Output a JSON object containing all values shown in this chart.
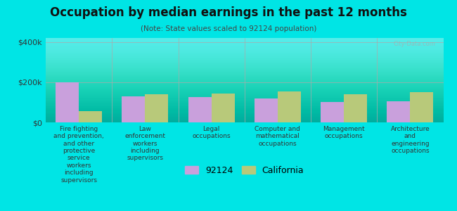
{
  "title": "Occupation by median earnings in the past 12 months",
  "subtitle": "(Note: State values scaled to 92124 population)",
  "categories": [
    "Fire fighting\nand prevention,\nand other\nprotective\nservice\nworkers\nincluding\nsupervisors",
    "Law\nenforcement\nworkers\nincluding\nsupervisors",
    "Legal\noccupations",
    "Computer and\nmathematical\noccupations",
    "Management\noccupations",
    "Architecture\nand\nengineering\noccupations"
  ],
  "values_92124": [
    200000,
    130000,
    125000,
    120000,
    100000,
    105000
  ],
  "values_california": [
    55000,
    140000,
    145000,
    155000,
    140000,
    150000
  ],
  "color_92124": "#c9a0dc",
  "color_california": "#b8c97a",
  "background_color": "#00e5e5",
  "plot_bg_start": "#e8f5e0",
  "plot_bg_end": "#f5fbf0",
  "ylim": [
    0,
    420000
  ],
  "yticks": [
    0,
    200000,
    400000
  ],
  "ytick_labels": [
    "$0",
    "$200k",
    "$400k"
  ],
  "bar_width": 0.35,
  "legend_92124": "92124",
  "legend_california": "California",
  "watermark": "City-Data.com"
}
